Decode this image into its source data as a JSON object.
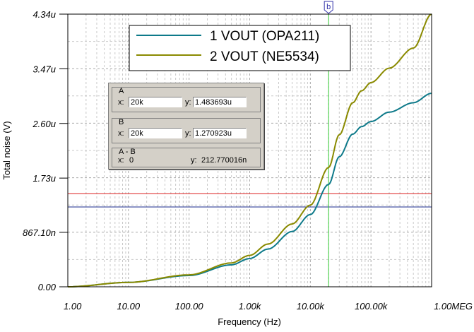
{
  "chart_data": {
    "type": "line",
    "xlabel": "Frequency (Hz)",
    "ylabel": "Total noise (V)",
    "x_scale": "log",
    "xlim": [
      1,
      1000000
    ],
    "ylim": [
      0,
      4.34e-06
    ],
    "x_ticks": [
      {
        "value": 1,
        "label": "1.00"
      },
      {
        "value": 10,
        "label": "10.00"
      },
      {
        "value": 100,
        "label": "100.00"
      },
      {
        "value": 1000,
        "label": "1.00k"
      },
      {
        "value": 10000,
        "label": "10.00k"
      },
      {
        "value": 100000,
        "label": "100.00k"
      },
      {
        "value": 1000000,
        "label": "1.00MEG"
      }
    ],
    "y_ticks": [
      {
        "value": 0,
        "label": "0.00"
      },
      {
        "value": 8.671e-07,
        "label": "867.10n"
      },
      {
        "value": 1.73e-06,
        "label": "1.73u"
      },
      {
        "value": 2.6e-06,
        "label": "2.60u"
      },
      {
        "value": 3.47e-06,
        "label": "3.47u"
      },
      {
        "value": 4.34e-06,
        "label": "4.34u"
      }
    ],
    "grid": true,
    "legend_position": "top-right",
    "series": [
      {
        "name": "1 VOUT  (OPA211)",
        "color": "#0e7a8a",
        "x": [
          1,
          10,
          100,
          500,
          1000,
          2000,
          5000,
          10000,
          20000,
          30000,
          50000,
          70000,
          100000,
          200000,
          500000,
          1000000
        ],
        "y": [
          0,
          7e-08,
          1.8e-07,
          3.5e-07,
          4.5e-07,
          6e-07,
          8.8e-07,
          1.15e-06,
          1.63e-06,
          2.07e-06,
          2.43e-06,
          2.55e-06,
          2.63e-06,
          2.78e-06,
          2.93e-06,
          3.08e-06
        ]
      },
      {
        "name": "2 VOUT  (NE5534)",
        "color": "#8a8a00",
        "x": [
          1,
          10,
          100,
          500,
          1000,
          2000,
          5000,
          10000,
          20000,
          30000,
          50000,
          70000,
          100000,
          200000,
          500000,
          1000000
        ],
        "y": [
          0,
          7e-08,
          1.9e-07,
          3.8e-07,
          5e-07,
          6.8e-07,
          1e-06,
          1.3e-06,
          1.9e-06,
          2.42e-06,
          2.93e-06,
          3.12e-06,
          3.25e-06,
          3.48e-06,
          3.8e-06,
          4.34e-06
        ]
      }
    ],
    "cursors": {
      "vertical_x": 20000,
      "vertical_label": "b",
      "horizontal": [
        {
          "y": 1.483693e-06,
          "color": "#dd2020"
        },
        {
          "y": 1.270923e-06,
          "color": "#1a2a8c"
        }
      ],
      "vertical_color": "#33cc33"
    }
  },
  "cursor_panel": {
    "a_label": "A",
    "a_x_label": "x:",
    "a_x_value": "20k",
    "a_y_label": "y:",
    "a_y_value": "1.483693u",
    "b_label": "B",
    "b_x_label": "x:",
    "b_x_value": "20k",
    "b_y_label": "y:",
    "b_y_value": "1.270923u",
    "diff_label": "A - B",
    "diff_x_label": "x:",
    "diff_x_value": "0",
    "diff_y_label": "y:",
    "diff_y_value": "212.770016n"
  }
}
